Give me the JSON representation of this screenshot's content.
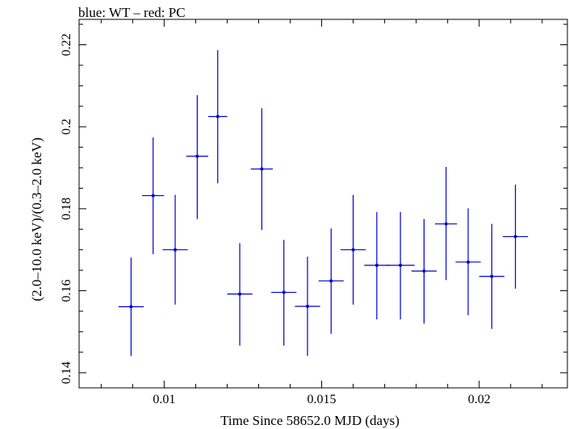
{
  "title": "blue: WT – red: PC",
  "chart_data": {
    "type": "scatter",
    "title": "blue: WT – red: PC",
    "xlabel": "Time Since 58652.0 MJD (days)",
    "ylabel": "(2.0–10.0 keV)/(0.3–2.0 keV)",
    "xlim": [
      0.0073,
      0.0228
    ],
    "ylim": [
      0.1363,
      0.2262
    ],
    "x_ticks": [
      {
        "value": 0.01,
        "label": "0.01"
      },
      {
        "value": 0.015,
        "label": "0.015"
      },
      {
        "value": 0.02,
        "label": "0.02"
      }
    ],
    "y_ticks": [
      {
        "value": 0.14,
        "label": "0.14"
      },
      {
        "value": 0.16,
        "label": "0.16"
      },
      {
        "value": 0.18,
        "label": "0.18"
      },
      {
        "value": 0.2,
        "label": "0.2"
      },
      {
        "value": 0.22,
        "label": "0.22"
      }
    ],
    "grid": false,
    "series": [
      {
        "color": "#0000cc",
        "points": [
          {
            "x": 0.00895,
            "xerr": 0.0004,
            "y": 0.1561,
            "ylo": 0.1441,
            "yhi": 0.1681
          },
          {
            "x": 0.00965,
            "xerr": 0.00035,
            "y": 0.1832,
            "ylo": 0.1689,
            "yhi": 0.1974
          },
          {
            "x": 0.01035,
            "xerr": 0.0004,
            "y": 0.17,
            "ylo": 0.1566,
            "yhi": 0.1834
          },
          {
            "x": 0.01105,
            "xerr": 0.00035,
            "y": 0.1928,
            "ylo": 0.1775,
            "yhi": 0.2077
          },
          {
            "x": 0.0117,
            "xerr": 0.0003,
            "y": 0.2025,
            "ylo": 0.1862,
            "yhi": 0.2187
          },
          {
            "x": 0.0124,
            "xerr": 0.0004,
            "y": 0.1592,
            "ylo": 0.1466,
            "yhi": 0.1716
          },
          {
            "x": 0.0131,
            "xerr": 0.00035,
            "y": 0.1897,
            "ylo": 0.1748,
            "yhi": 0.2045
          },
          {
            "x": 0.0138,
            "xerr": 0.0004,
            "y": 0.1596,
            "ylo": 0.1466,
            "yhi": 0.1724
          },
          {
            "x": 0.01455,
            "xerr": 0.0004,
            "y": 0.1562,
            "ylo": 0.1441,
            "yhi": 0.1683
          },
          {
            "x": 0.0153,
            "xerr": 0.0004,
            "y": 0.1624,
            "ylo": 0.1495,
            "yhi": 0.1752
          },
          {
            "x": 0.016,
            "xerr": 0.0004,
            "y": 0.17,
            "ylo": 0.1566,
            "yhi": 0.1834
          },
          {
            "x": 0.01675,
            "xerr": 0.0004,
            "y": 0.1662,
            "ylo": 0.153,
            "yhi": 0.1792
          },
          {
            "x": 0.0175,
            "xerr": 0.00045,
            "y": 0.1662,
            "ylo": 0.153,
            "yhi": 0.1792
          },
          {
            "x": 0.01825,
            "xerr": 0.0004,
            "y": 0.1648,
            "ylo": 0.152,
            "yhi": 0.1775
          },
          {
            "x": 0.01895,
            "xerr": 0.00035,
            "y": 0.1763,
            "ylo": 0.1626,
            "yhi": 0.1902
          },
          {
            "x": 0.01965,
            "xerr": 0.0004,
            "y": 0.167,
            "ylo": 0.154,
            "yhi": 0.1801
          },
          {
            "x": 0.0204,
            "xerr": 0.0004,
            "y": 0.1635,
            "ylo": 0.1507,
            "yhi": 0.1763
          },
          {
            "x": 0.02115,
            "xerr": 0.0004,
            "y": 0.1732,
            "ylo": 0.1605,
            "yhi": 0.1859
          }
        ]
      }
    ]
  }
}
